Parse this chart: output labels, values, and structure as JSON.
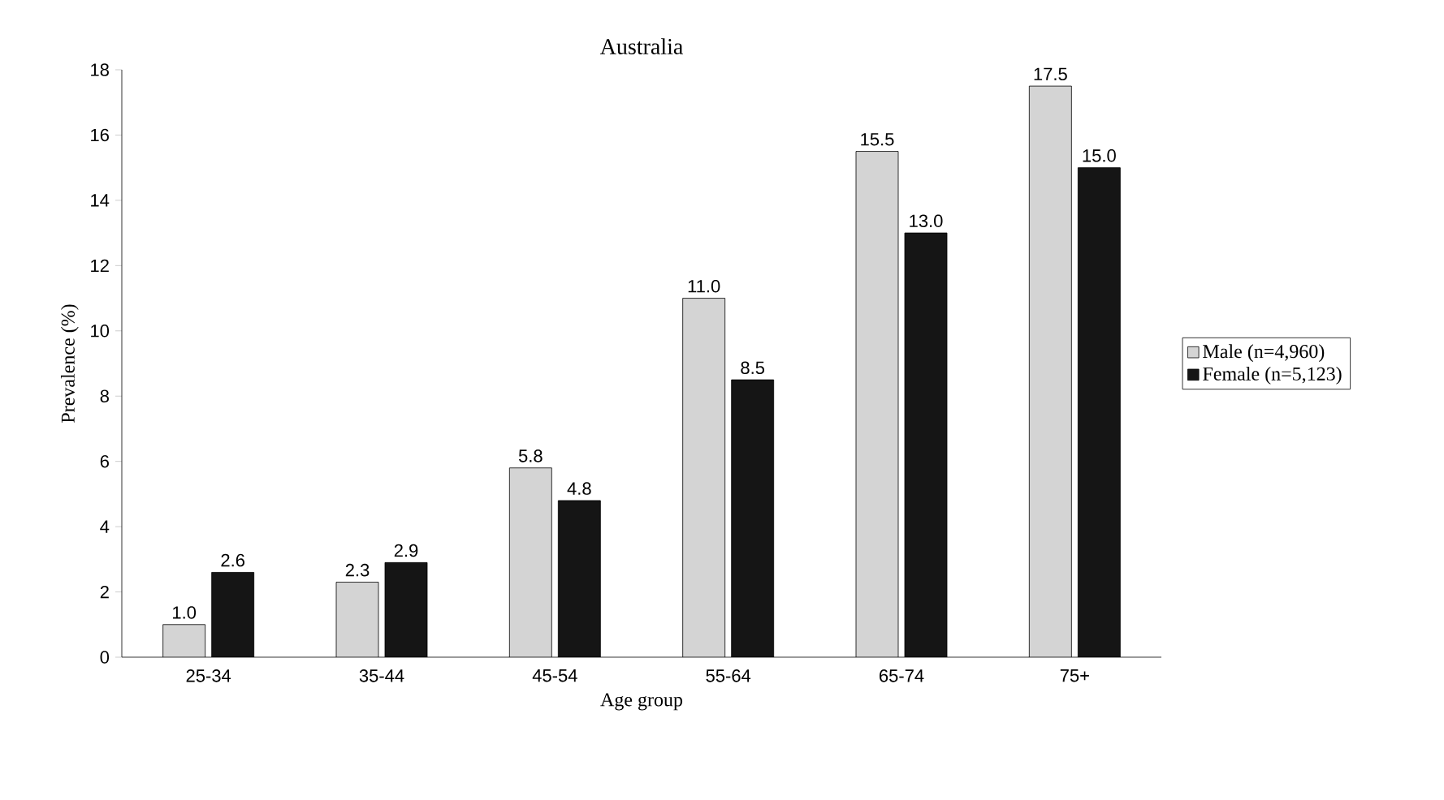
{
  "chart_data": {
    "type": "bar",
    "title": "Australia",
    "xlabel": "Age group",
    "ylabel": "Prevalence (%)",
    "categories": [
      "25-34",
      "35-44",
      "45-54",
      "55-64",
      "65-74",
      "75+"
    ],
    "series": [
      {
        "name": "Male (n=4,960)",
        "color": "#d4d4d4",
        "values": [
          1.0,
          2.3,
          5.8,
          11.0,
          15.5,
          17.5
        ],
        "value_labels": [
          "1.0",
          "2.3",
          "5.8",
          "11.0",
          "15.5",
          "17.5"
        ]
      },
      {
        "name": "Female (n=5,123)",
        "color": "#151515",
        "values": [
          2.6,
          2.9,
          4.8,
          8.5,
          13.0,
          15.0
        ],
        "value_labels": [
          "2.6",
          "2.9",
          "4.8",
          "8.5",
          "13.0",
          "15.0"
        ]
      }
    ],
    "ylim": [
      0,
      18
    ],
    "yticks": [
      0,
      2,
      4,
      6,
      8,
      10,
      12,
      14,
      16,
      18
    ],
    "legend": "right",
    "grid": false
  }
}
